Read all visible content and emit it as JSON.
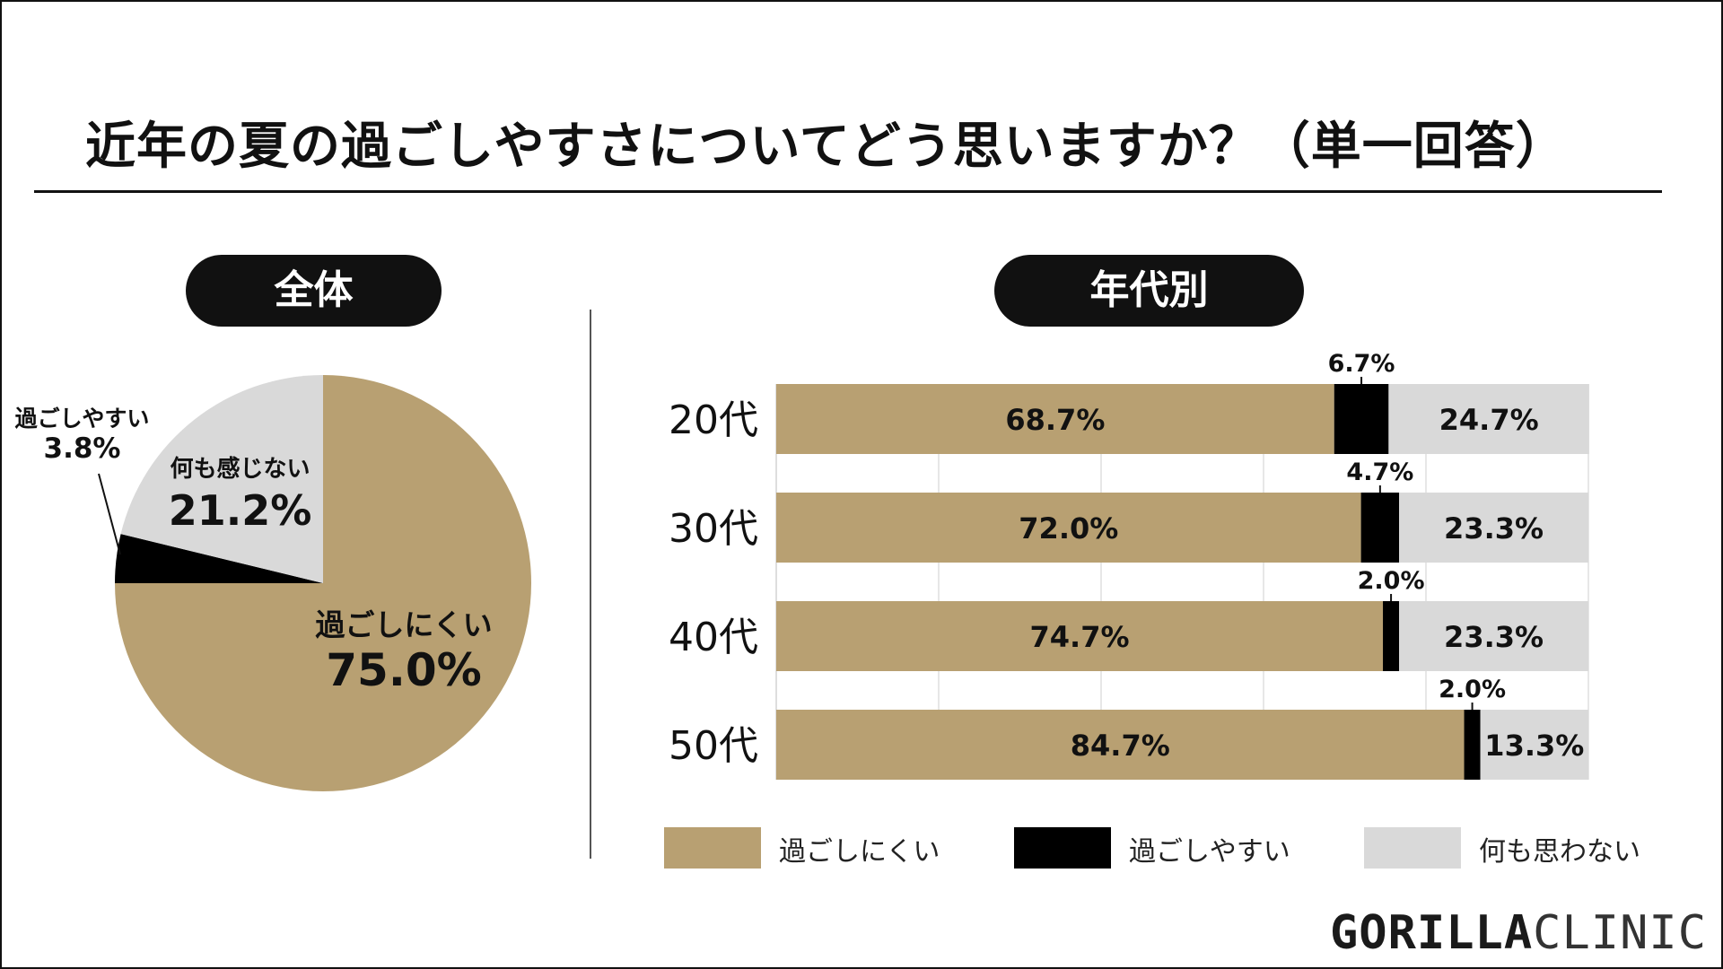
{
  "title": "近年の夏の過ごしやすさについてどう思いますか？（単一回答）",
  "overall_pill": "全体",
  "age_pill": "年代別",
  "logo": {
    "strong": "GORILLA",
    "light": "CLINIC"
  },
  "colors": {
    "hard": "#b8a072",
    "easy": "#000000",
    "nothing": "#d9d9d9"
  },
  "chart_data": [
    {
      "type": "pie",
      "title": "全体",
      "slices": [
        {
          "key": "hard",
          "label": "過ごしにくい",
          "value": 75.0,
          "display": "75.0%"
        },
        {
          "key": "easy",
          "label": "過ごしやすい",
          "value": 3.8,
          "display": "3.8%"
        },
        {
          "key": "nothing",
          "label": "何も感じない",
          "value": 21.2,
          "display": "21.2%"
        }
      ]
    },
    {
      "type": "bar",
      "orientation": "horizontal",
      "stacked": true,
      "title": "年代別",
      "categories": [
        "20代",
        "30代",
        "40代",
        "50代"
      ],
      "xlim": [
        0,
        100
      ],
      "grid": true,
      "legend_position": "bottom",
      "series": [
        {
          "key": "hard",
          "name": "過ごしにくい",
          "values": [
            68.7,
            72.0,
            74.7,
            84.7
          ],
          "labels": [
            "68.7%",
            "72.0%",
            "74.7%",
            "84.7%"
          ]
        },
        {
          "key": "easy",
          "name": "過ごしやすい",
          "values": [
            6.7,
            4.7,
            2.0,
            2.0
          ],
          "labels": [
            "6.7%",
            "4.7%",
            "2.0%",
            "2.0%"
          ]
        },
        {
          "key": "nothing",
          "name": "何も思わない",
          "values": [
            24.7,
            23.3,
            23.3,
            13.3
          ],
          "labels": [
            "24.7%",
            "23.3%",
            "23.3%",
            "13.3%"
          ]
        }
      ]
    }
  ]
}
